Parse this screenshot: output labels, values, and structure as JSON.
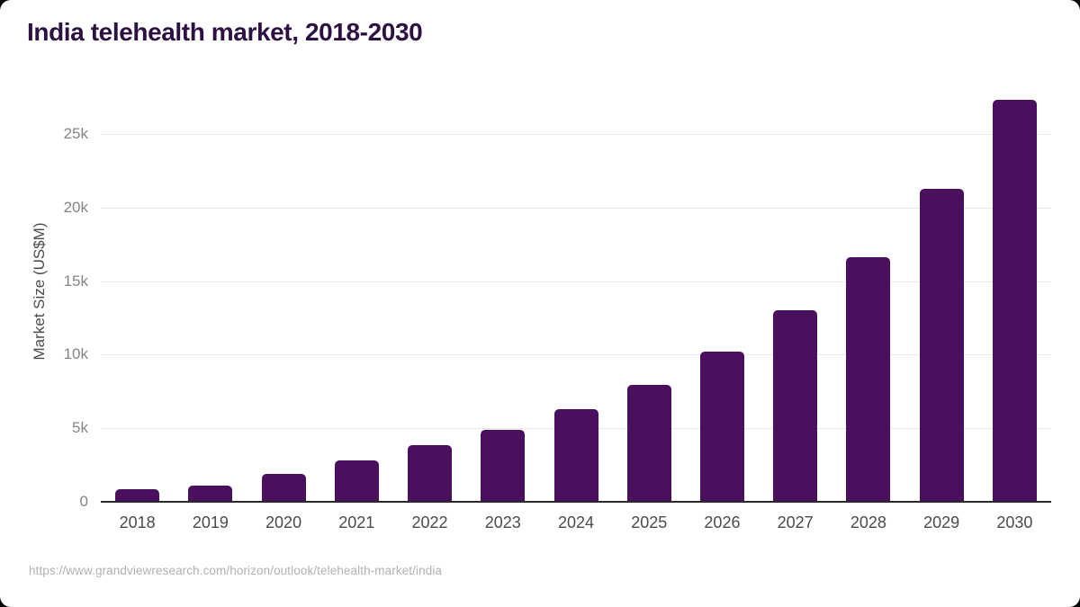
{
  "title": "India telehealth market, 2018-2030",
  "source_url": "https://www.grandviewresearch.com/horizon/outlook/telehealth-market/india",
  "colors": {
    "bar": "#4a105e",
    "title_text": "#2e1143",
    "axis_line": "#2a2a2a",
    "gridline": "#e9e9e9",
    "y_tick_text": "#858585",
    "x_tick_text": "#4b4b4b",
    "source_text": "#b1b1b6",
    "background": "#ffffff"
  },
  "chart_data": {
    "type": "bar",
    "title": "India telehealth market, 2018-2030",
    "xlabel": "",
    "ylabel": "Market Size (US$M)",
    "categories": [
      "2018",
      "2019",
      "2020",
      "2021",
      "2022",
      "2023",
      "2024",
      "2025",
      "2026",
      "2027",
      "2028",
      "2029",
      "2030"
    ],
    "values": [
      850,
      1100,
      1900,
      2800,
      3850,
      4900,
      6280,
      7950,
      10200,
      13050,
      16650,
      21300,
      27300
    ],
    "ylim": [
      0,
      27500
    ],
    "yticks": [
      {
        "value": 0,
        "label": "0"
      },
      {
        "value": 5000,
        "label": "5k"
      },
      {
        "value": 10000,
        "label": "10k"
      },
      {
        "value": 15000,
        "label": "15k"
      },
      {
        "value": 20000,
        "label": "20k"
      },
      {
        "value": 25000,
        "label": "25k"
      }
    ],
    "grid": true,
    "legend_position": "none",
    "bar_color": "#4a105e",
    "source": "https://www.grandviewresearch.com/horizon/outlook/telehealth-market/india"
  }
}
